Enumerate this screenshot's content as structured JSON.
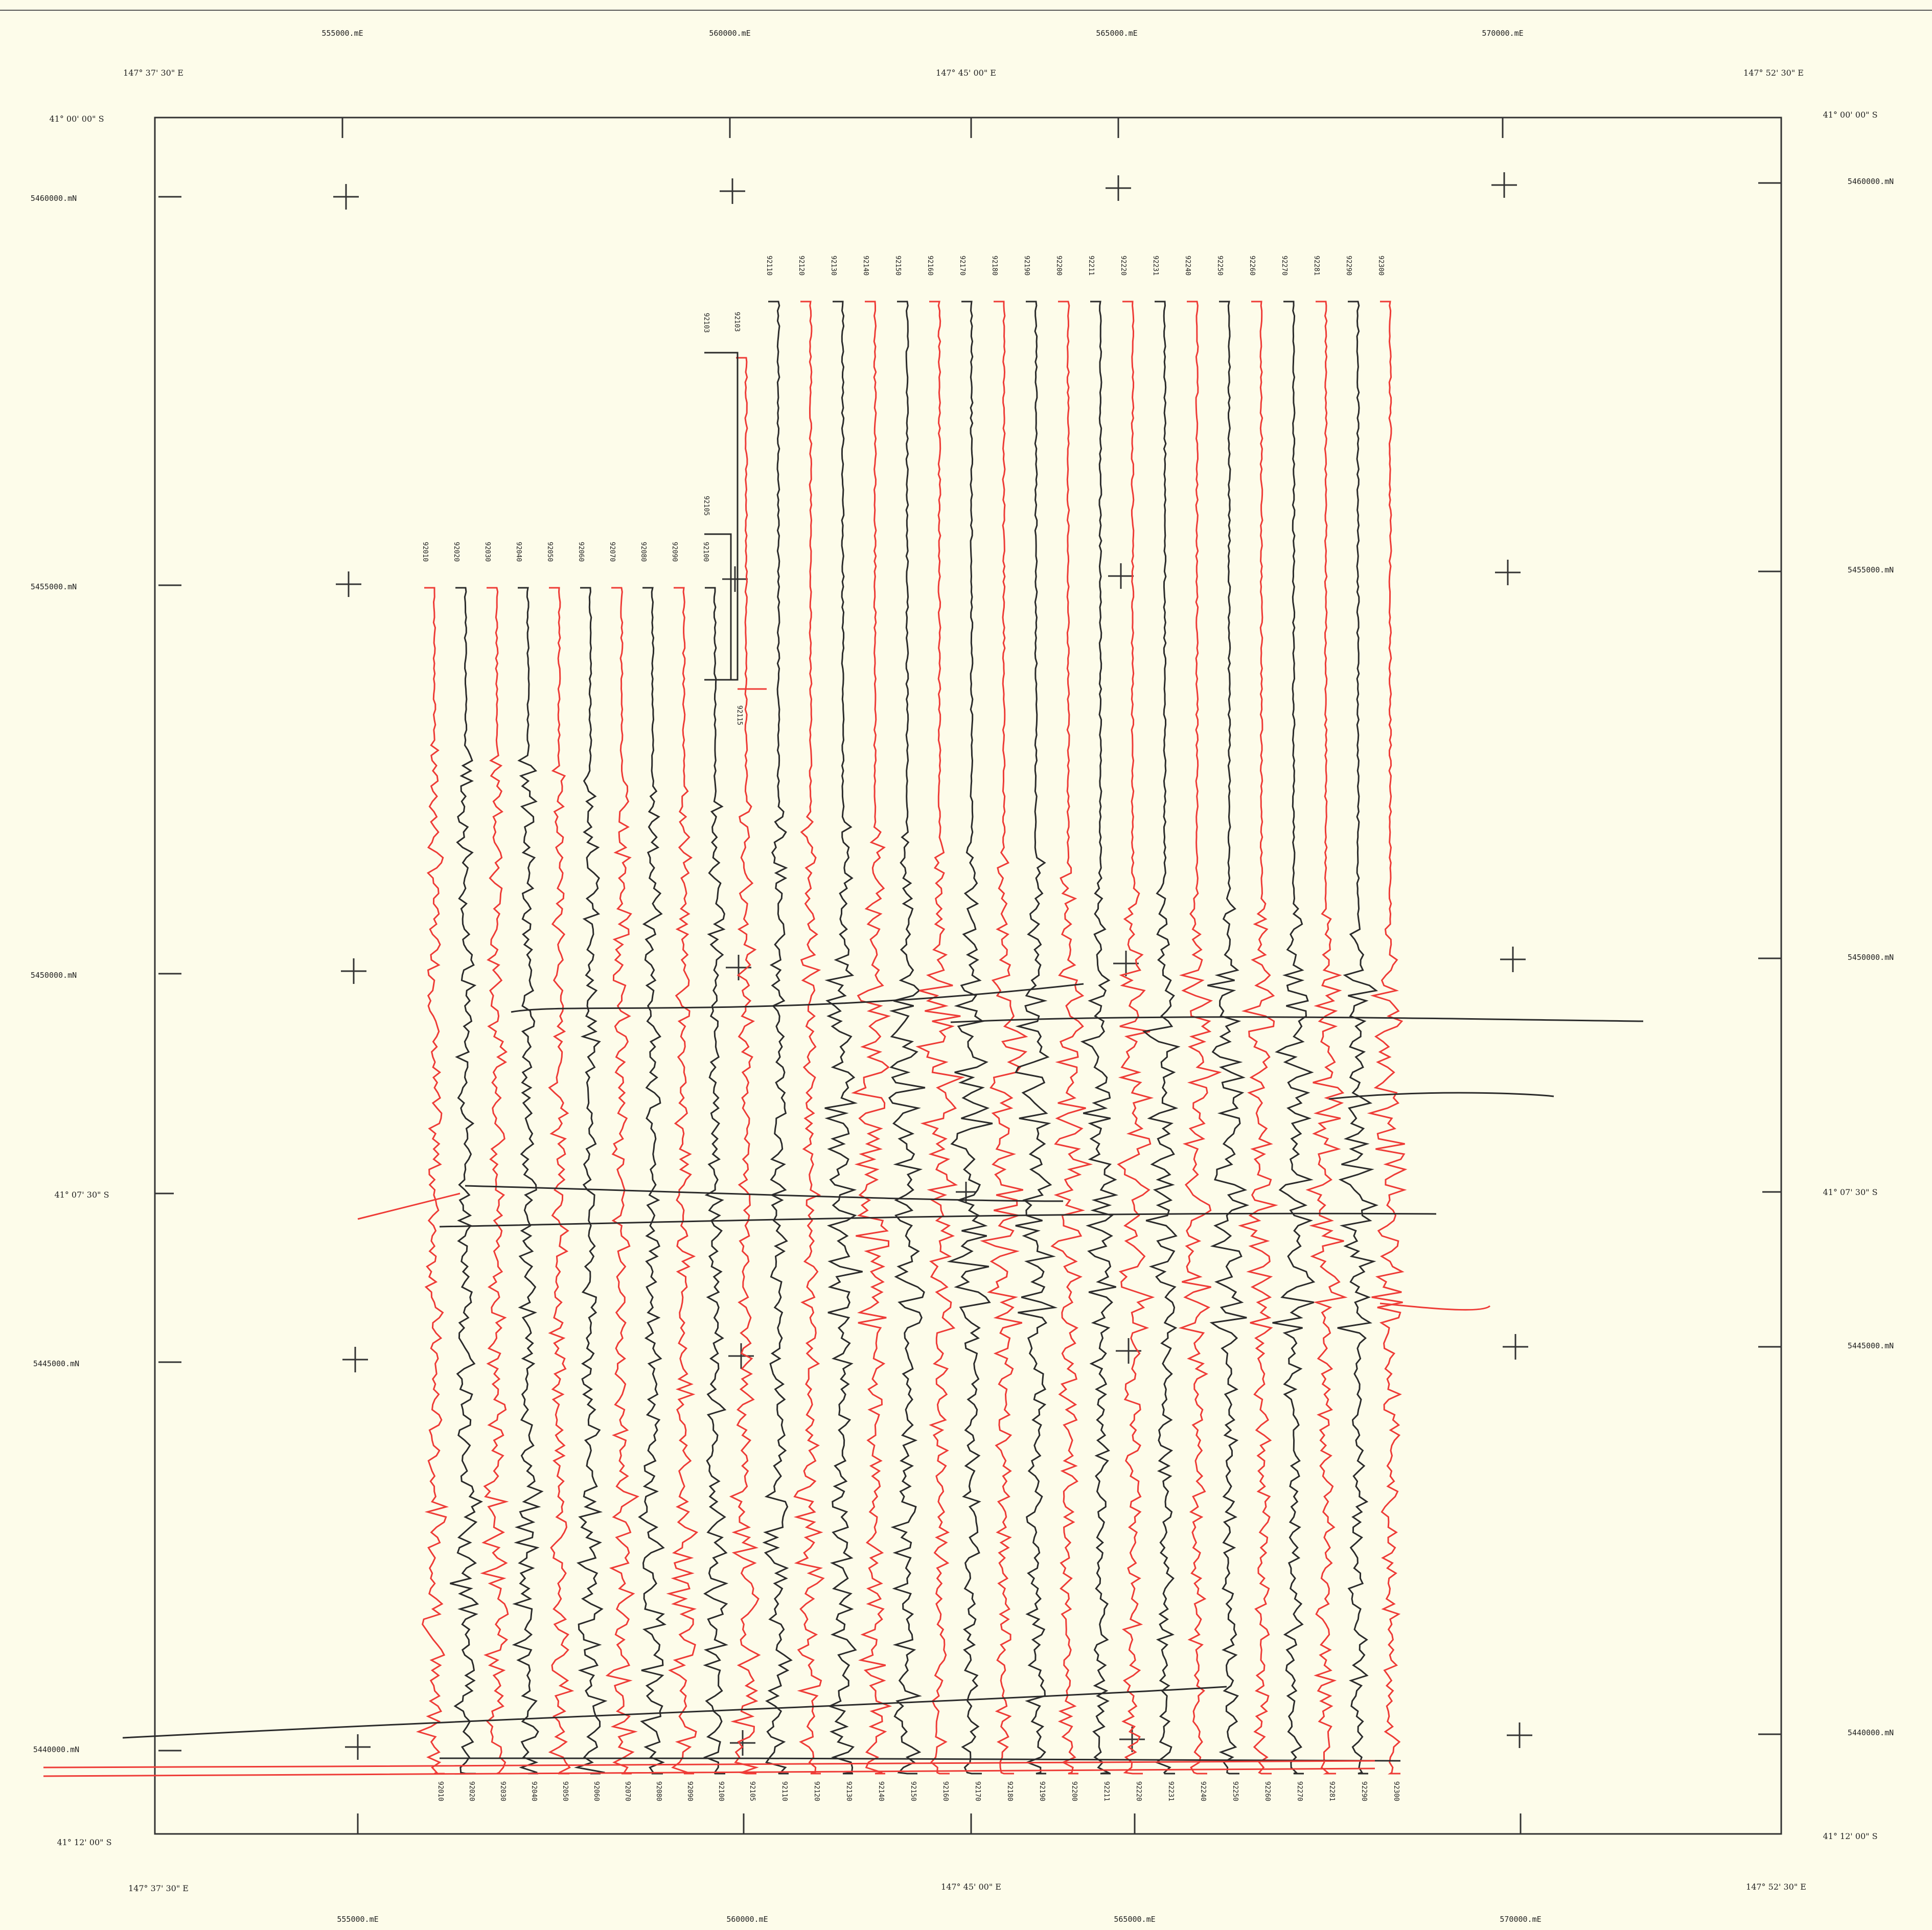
{
  "map": {
    "easting_labels_top": [
      "555000.mE",
      "560000.mE",
      "565000.mE",
      "570000.mE"
    ],
    "easting_labels_bottom": [
      "555000.mE",
      "560000.mE",
      "565000.mE",
      "570000.mE"
    ],
    "northing_labels_left": [
      "5460000.mN",
      "5455000.mN",
      "5450000.mN",
      "5445000.mN",
      "5440000.mN"
    ],
    "northing_labels_right": [
      "5460000.mN",
      "5455000.mN",
      "5450000.mN",
      "5445000.mN",
      "5440000.mN"
    ],
    "longitude_top": [
      "147°  37' 30\" E",
      "147°  45' 00\" E",
      "147°  52' 30\" E"
    ],
    "longitude_bottom": [
      "147°  37' 30\" E",
      "147°  45' 00\" E",
      "147°  52' 30\" E"
    ],
    "latitude_left": [
      "41°  00' 00\" S",
      "41°  07' 30\" S",
      "41°  12' 00\" S"
    ],
    "latitude_right": [
      "41°  00' 00\" S",
      "41°  07' 30\" S",
      "41°  12' 00\" S"
    ],
    "colors": {
      "black_trace": "#2b2b2b",
      "red_trace": "#ee3b36",
      "frame": "#333333",
      "paper": "#fdfcea"
    }
  },
  "flight_lines": {
    "north_labels": [
      "92010",
      "92020",
      "92030",
      "92040",
      "92050",
      "92060",
      "92070",
      "92080",
      "92090",
      "92100",
      "92103",
      "92110",
      "92120",
      "92130",
      "92140",
      "92150",
      "92160",
      "92170",
      "92180",
      "92190",
      "92200",
      "92211",
      "92220",
      "92231",
      "92240",
      "92250",
      "92260",
      "92270",
      "92281",
      "92290",
      "92300"
    ],
    "south_labels": [
      "92010",
      "92020",
      "92030",
      "92040",
      "92050",
      "92060",
      "92070",
      "92080",
      "92090",
      "92100",
      "92105",
      "92110",
      "92120",
      "92130",
      "92140",
      "92150",
      "92160",
      "92170",
      "92180",
      "92190",
      "92200",
      "92211",
      "92220",
      "92231",
      "92240",
      "92250",
      "92260",
      "92270",
      "92281",
      "92290",
      "92300"
    ],
    "stub_labels": [
      "92103",
      "92105",
      "92115"
    ]
  }
}
